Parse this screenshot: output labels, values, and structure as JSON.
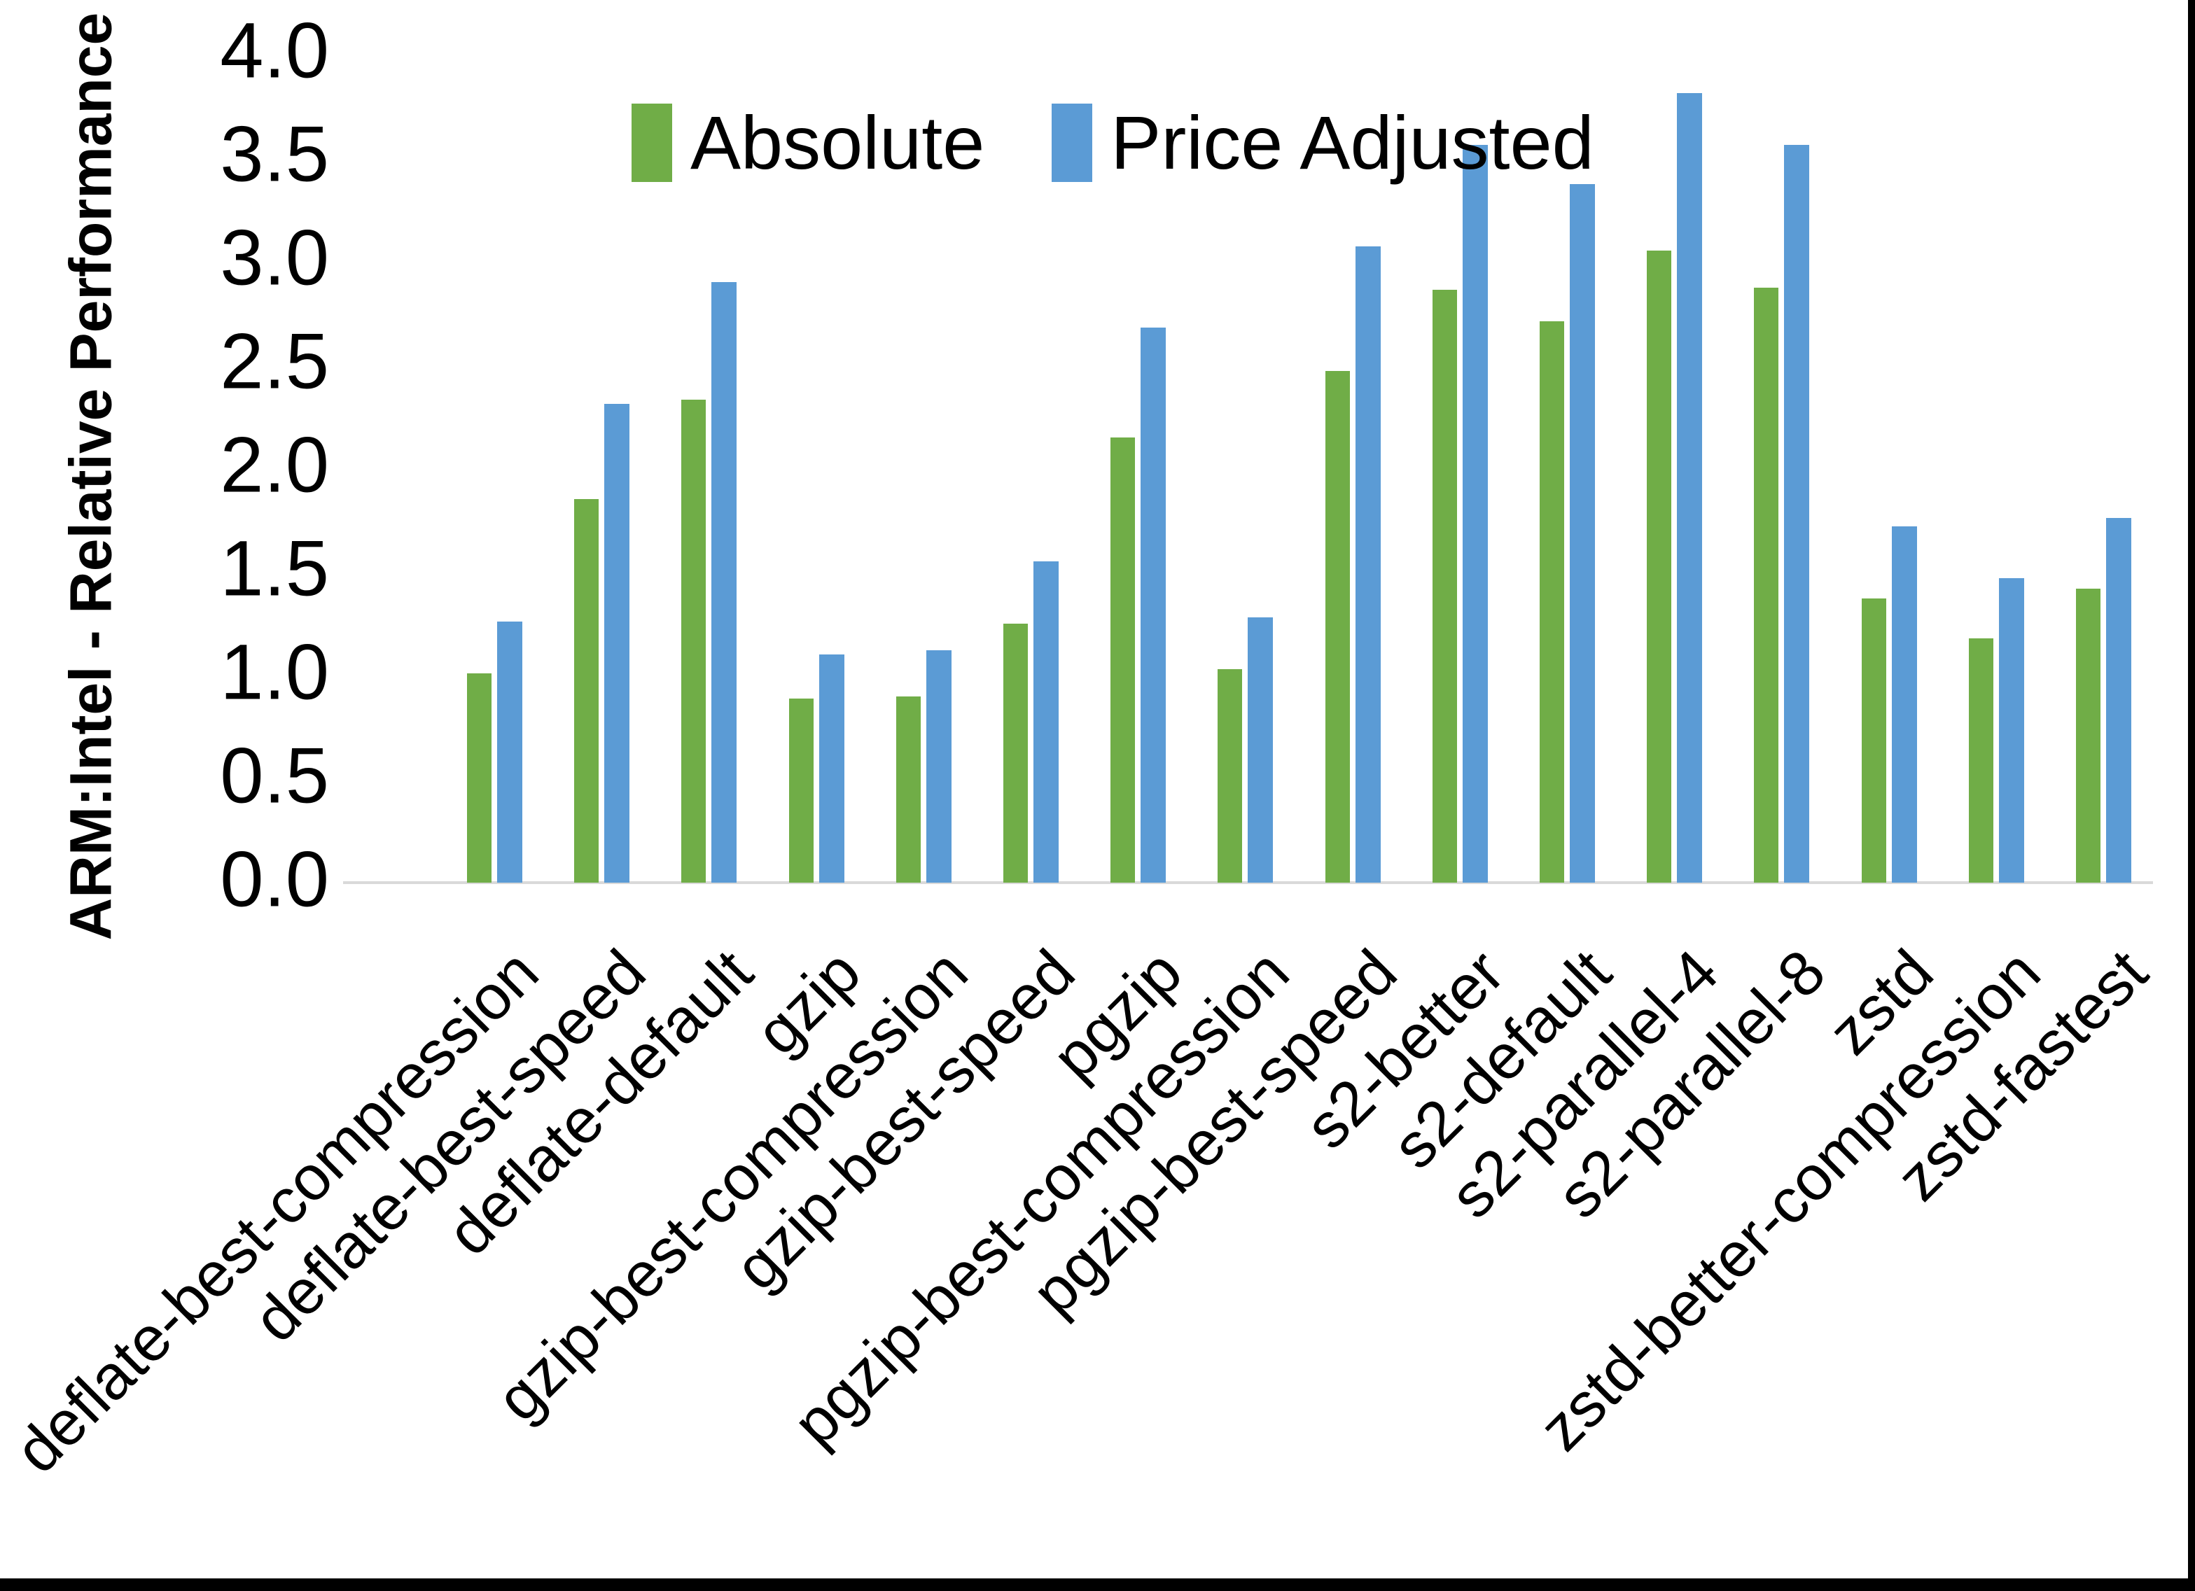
{
  "chart_data": {
    "type": "bar",
    "title": "",
    "ylabel": "ARM:Intel - Relative Performance",
    "xlabel": "",
    "ylim": [
      0.0,
      4.0
    ],
    "ytick_step": 0.5,
    "yticks": [
      "0.0",
      "0.5",
      "1.0",
      "1.5",
      "2.0",
      "2.5",
      "3.0",
      "3.5",
      "4.0"
    ],
    "grid": "off",
    "legend_position": "top-center",
    "categories": [
      "deflate-best-compression",
      "deflate-best-speed",
      "deflate-default",
      "gzip",
      "gzip-best-compression",
      "gzip-best-speed",
      "pgzip",
      "pgzip-best-compression",
      "pgzip-best-speed",
      "s2-better",
      "s2-default",
      "s2-parallel-4",
      "s2-parallel-8",
      "zstd",
      "zstd-better-compression",
      "zstd-fastest"
    ],
    "series": [
      {
        "name": "Absolute",
        "color": "#70AD47",
        "values": [
          1.01,
          1.85,
          2.33,
          0.89,
          0.9,
          1.25,
          2.15,
          1.03,
          2.47,
          2.86,
          2.71,
          3.05,
          2.87,
          1.37,
          1.18,
          1.42
        ]
      },
      {
        "name": "Price Adjusted",
        "color": "#5B9BD5",
        "values": [
          1.26,
          2.31,
          2.9,
          1.1,
          1.12,
          1.55,
          2.68,
          1.28,
          3.07,
          3.56,
          3.37,
          3.81,
          3.56,
          1.72,
          1.47,
          1.76
        ]
      }
    ],
    "axis_line_color": "#D9D9D9",
    "text_color": "#000000",
    "background_color": "#FFFFFF"
  }
}
